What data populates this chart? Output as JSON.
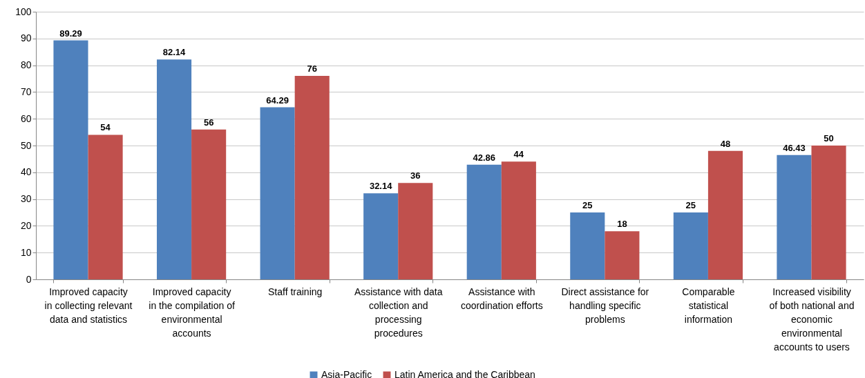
{
  "chart_data": {
    "type": "bar",
    "categories": [
      "Improved capacity in collecting relevant data and statistics",
      "Improved capacity in the compilation of environmental accounts",
      "Staff training",
      "Assistance with data collection and processing procedures",
      "Assistance with coordination efforts",
      "Direct assistance for handling specific problems",
      "Comparable statistical information",
      "Increased visibility of both national and economic environmental accounts to users"
    ],
    "series": [
      {
        "name": "Asia-Pacific",
        "color": "#4f81bd",
        "values": [
          89.29,
          82.14,
          64.29,
          32.14,
          42.86,
          25,
          25,
          46.43
        ]
      },
      {
        "name": "Latin America and the Caribbean",
        "color": "#c0504d",
        "values": [
          54,
          56,
          76,
          36,
          44,
          18,
          48,
          50
        ]
      }
    ],
    "ylim": [
      0,
      100
    ],
    "yticks": [
      0,
      10,
      20,
      30,
      40,
      50,
      60,
      70,
      80,
      90,
      100
    ],
    "grid": "y",
    "legend": "bottom",
    "data_labels": true
  }
}
